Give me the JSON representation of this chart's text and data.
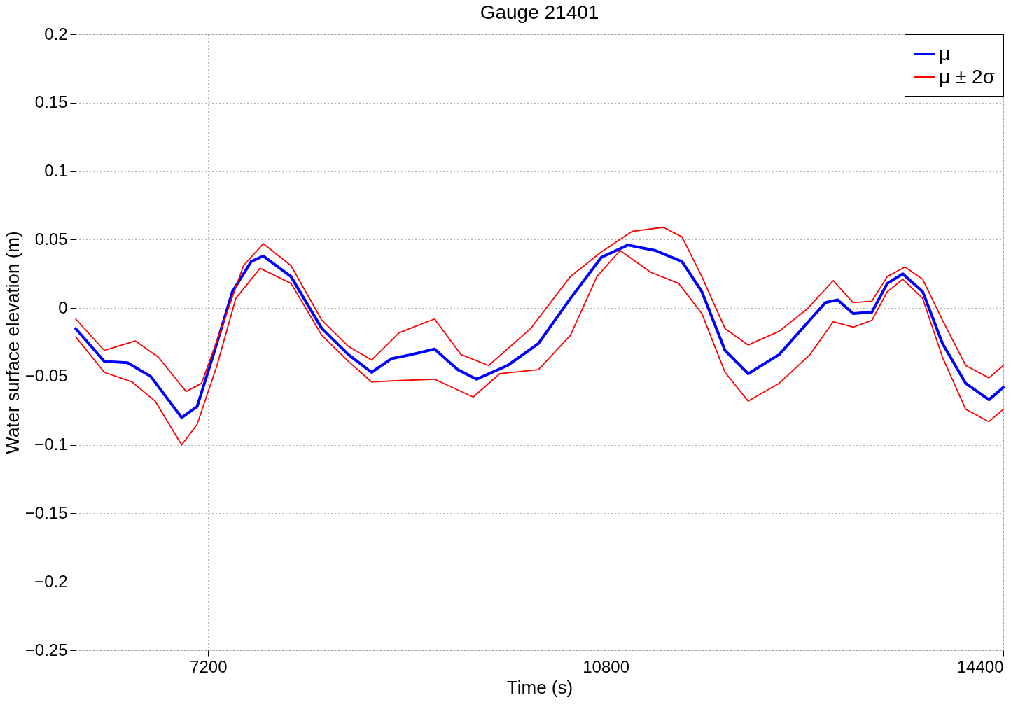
{
  "chart_data": {
    "type": "line",
    "title": "Gauge 21401",
    "xlabel": "Time (s)",
    "ylabel": "Water surface elevation (m)",
    "xlim": [
      6000,
      14400
    ],
    "xticks": [
      7200,
      10800,
      14400
    ],
    "ylim": [
      -0.25,
      0.2
    ],
    "yticks": [
      {
        "value": -0.25,
        "label": "−0.25"
      },
      {
        "value": -0.2,
        "label": "−0.2"
      },
      {
        "value": -0.15,
        "label": "−0.15"
      },
      {
        "value": -0.1,
        "label": "−0.1"
      },
      {
        "value": -0.05,
        "label": "−0.05"
      },
      0,
      0.05,
      0.1,
      0.15,
      0.2
    ],
    "grid": true,
    "legend": "top right",
    "line_style": "solid",
    "marker": "none",
    "series": [
      {
        "name": "μ",
        "color": "#0000ff",
        "x": [
          6000,
          6260,
          6470,
          6680,
          6960,
          7100,
          7240,
          7420,
          7590,
          7700,
          7950,
          8230,
          8470,
          8680,
          8860,
          9040,
          9250,
          9460,
          9630,
          9910,
          10190,
          10480,
          10760,
          11000,
          11250,
          11490,
          11670,
          11880,
          12090,
          12370,
          12580,
          12790,
          12900,
          13040,
          13210,
          13350,
          13490,
          13670,
          13850,
          14060,
          14270,
          14400
        ],
        "values": [
          -0.015,
          -0.039,
          -0.04,
          -0.05,
          -0.08,
          -0.072,
          -0.036,
          0.012,
          0.034,
          0.038,
          0.023,
          -0.015,
          -0.034,
          -0.047,
          -0.037,
          -0.034,
          -0.03,
          -0.045,
          -0.052,
          -0.042,
          -0.026,
          0.007,
          0.037,
          0.046,
          0.042,
          0.034,
          0.012,
          -0.031,
          -0.048,
          -0.034,
          -0.015,
          0.004,
          0.006,
          -0.004,
          -0.003,
          0.018,
          0.025,
          0.012,
          -0.026,
          -0.055,
          -0.067,
          -0.058
        ]
      },
      {
        "name": "μ ± 2σ",
        "color": "#ff0000",
        "x": [
          6000,
          6260,
          6540,
          6750,
          7000,
          7140,
          7310,
          7520,
          7700,
          7950,
          8230,
          8470,
          8680,
          8930,
          9250,
          9490,
          9740,
          10120,
          10480,
          10760,
          11040,
          11320,
          11490,
          11670,
          11880,
          12090,
          12370,
          12620,
          12860,
          13040,
          13210,
          13350,
          13510,
          13670,
          13850,
          14060,
          14270,
          14400
        ],
        "values": [
          -0.008,
          -0.031,
          -0.024,
          -0.036,
          -0.061,
          -0.055,
          -0.017,
          0.031,
          0.047,
          0.031,
          -0.009,
          -0.028,
          -0.038,
          -0.018,
          -0.008,
          -0.034,
          -0.042,
          -0.015,
          0.023,
          0.041,
          0.056,
          0.059,
          0.052,
          0.023,
          -0.015,
          -0.027,
          -0.017,
          -0.001,
          0.02,
          0.004,
          0.005,
          0.023,
          0.03,
          0.021,
          -0.009,
          -0.042,
          -0.051,
          -0.042
        ]
      },
      {
        "color": "#ff0000",
        "x": [
          6000,
          6260,
          6510,
          6720,
          6960,
          7100,
          7280,
          7450,
          7670,
          7950,
          8230,
          8470,
          8680,
          8930,
          9250,
          9600,
          9840,
          10190,
          10480,
          10720,
          10930,
          11210,
          11460,
          11670,
          11880,
          12090,
          12370,
          12650,
          12860,
          13040,
          13210,
          13350,
          13490,
          13670,
          13850,
          14060,
          14270,
          14400
        ],
        "values": [
          -0.021,
          -0.047,
          -0.054,
          -0.068,
          -0.1,
          -0.085,
          -0.042,
          0.007,
          0.029,
          0.018,
          -0.02,
          -0.039,
          -0.054,
          -0.053,
          -0.052,
          -0.065,
          -0.048,
          -0.045,
          -0.02,
          0.023,
          0.042,
          0.026,
          0.018,
          -0.004,
          -0.047,
          -0.068,
          -0.055,
          -0.034,
          -0.01,
          -0.014,
          -0.009,
          0.012,
          0.021,
          0.007,
          -0.036,
          -0.074,
          -0.083,
          -0.074
        ]
      }
    ]
  }
}
